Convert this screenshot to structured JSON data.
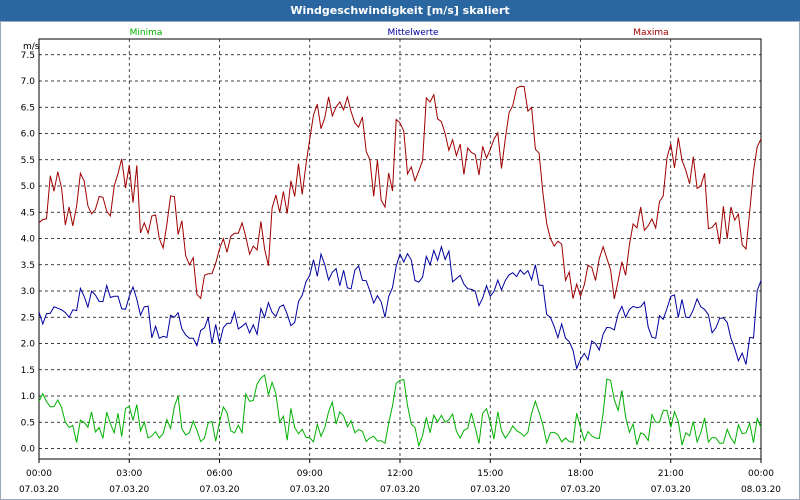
{
  "window": {
    "title": "Windgeschwindigkeit [m/s] skaliert"
  },
  "chart_data": {
    "type": "line",
    "title": "Windgeschwindigkeit [m/s] skaliert",
    "ylabel": "m/s",
    "xlabel": "",
    "ylim": [
      -0.2,
      7.8
    ],
    "xlim": [
      0,
      24
    ],
    "grid": true,
    "legend_position": "top",
    "y_ticks": [
      "0.0",
      "0.5",
      "1.0",
      "1.5",
      "2.0",
      "2.5",
      "3.0",
      "3.5",
      "4.0",
      "4.5",
      "5.0",
      "5.5",
      "6.0",
      "6.5",
      "7.0",
      "7.5"
    ],
    "x_ticks": [
      {
        "time": "00:00",
        "date": "07.03.20"
      },
      {
        "time": "03:00",
        "date": "07.03.20"
      },
      {
        "time": "06:00",
        "date": "07.03.20"
      },
      {
        "time": "09:00",
        "date": "07.03.20"
      },
      {
        "time": "12:00",
        "date": "07.03.20"
      },
      {
        "time": "15:00",
        "date": "07.03.20"
      },
      {
        "time": "18:00",
        "date": "07.03.20"
      },
      {
        "time": "21:00",
        "date": "07.03.20"
      },
      {
        "time": "00:00",
        "date": "08.03.20"
      }
    ],
    "series": [
      {
        "name": "Minima",
        "color": "#00b000",
        "x": [
          0,
          0.5,
          1,
          1.5,
          2,
          2.5,
          3,
          3.5,
          4,
          4.5,
          5,
          5.5,
          6,
          6.5,
          7,
          7.5,
          8,
          8.5,
          9,
          9.5,
          10,
          10.5,
          11,
          11.5,
          12,
          12.5,
          13,
          13.5,
          14,
          14.5,
          15,
          15.5,
          16,
          16.5,
          17,
          17.5,
          18,
          18.5,
          19,
          19.5,
          20,
          20.5,
          21,
          21.5,
          22,
          22.5,
          23,
          23.5,
          24
        ],
        "values": [
          0.9,
          0.8,
          0.4,
          0.5,
          0.4,
          0.3,
          0.8,
          0.5,
          0.2,
          0.8,
          0.3,
          0.2,
          0.5,
          0.3,
          0.9,
          1.4,
          0.5,
          0.4,
          0.2,
          0.4,
          0.7,
          0.3,
          0.2,
          0.1,
          1.3,
          0.4,
          0.3,
          0.5,
          0.2,
          0.4,
          0.5,
          0.2,
          0.3,
          0.9,
          0.3,
          0.2,
          0.4,
          0.2,
          1.3,
          0.6,
          0.3,
          0.5,
          0.4,
          0.3,
          0.3,
          0.2,
          0.2,
          0.3,
          0.4
        ]
      },
      {
        "name": "Mittelwerte",
        "color": "#0000a0",
        "x": [
          0,
          0.5,
          1,
          1.5,
          2,
          2.5,
          3,
          3.5,
          4,
          4.5,
          5,
          5.5,
          6,
          6.5,
          7,
          7.5,
          8,
          8.5,
          9,
          9.5,
          10,
          10.5,
          11,
          11.5,
          12,
          12.5,
          13,
          13.5,
          14,
          14.5,
          15,
          15.5,
          16,
          16.5,
          17,
          17.5,
          18,
          18.5,
          19,
          19.5,
          20,
          20.5,
          21,
          21.5,
          22,
          22.5,
          23,
          23.5,
          24
        ],
        "values": [
          2.6,
          2.7,
          2.5,
          2.9,
          2.8,
          2.9,
          2.9,
          2.7,
          2.1,
          2.5,
          2.1,
          2.3,
          2.0,
          2.6,
          2.2,
          2.5,
          2.7,
          2.4,
          3.3,
          3.5,
          3.1,
          3.4,
          3.0,
          2.5,
          3.7,
          3.2,
          3.5,
          3.6,
          3.3,
          3.0,
          2.9,
          3.2,
          3.4,
          3.5,
          2.5,
          2.1,
          1.7,
          2.0,
          2.3,
          2.5,
          2.7,
          2.1,
          2.9,
          2.5,
          2.7,
          2.3,
          2.1,
          1.6,
          3.2
        ]
      },
      {
        "name": "Maxima",
        "color": "#a00000",
        "x": [
          0,
          0.5,
          1,
          1.5,
          2,
          2.5,
          3,
          3.5,
          4,
          4.5,
          5,
          5.5,
          6,
          6.5,
          7,
          7.5,
          8,
          8.5,
          9,
          9.5,
          10,
          10.5,
          11,
          11.5,
          12,
          12.5,
          13,
          13.5,
          14,
          14.5,
          15,
          15.5,
          16,
          16.5,
          17,
          17.5,
          18,
          18.5,
          19,
          19.5,
          20,
          20.5,
          21,
          21.5,
          22,
          22.5,
          23,
          23.5,
          24
        ],
        "values": [
          4.3,
          4.9,
          4.6,
          5.1,
          4.8,
          5.0,
          5.4,
          4.3,
          4.0,
          4.8,
          3.5,
          3.3,
          3.8,
          4.1,
          3.7,
          3.8,
          4.5,
          4.8,
          5.9,
          6.3,
          6.6,
          6.2,
          5.5,
          4.6,
          6.2,
          5.1,
          6.6,
          6.0,
          5.8,
          5.6,
          5.7,
          5.9,
          6.9,
          5.7,
          4.0,
          3.2,
          2.9,
          3.2,
          3.4,
          3.3,
          4.6,
          4.2,
          5.8,
          5.3,
          5.0,
          4.3,
          4.6,
          3.8,
          5.9
        ]
      }
    ]
  }
}
